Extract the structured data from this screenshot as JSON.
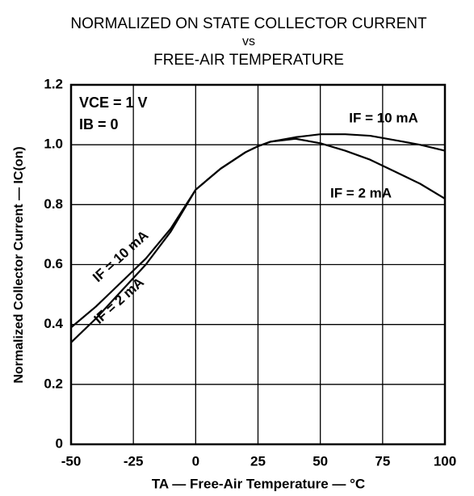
{
  "chart_data": {
    "type": "line",
    "title": [
      "NORMALIZED ON STATE COLLECTOR CURRENT",
      "vs",
      "FREE-AIR TEMPERATURE"
    ],
    "xlabel": "TA — Free-Air Temperature — °C",
    "ylabel": "Normalized Collector Current — IC(on)",
    "annotations": [
      "VCE = 1 V",
      "IB = 0"
    ],
    "x": [
      -50,
      -40,
      -30,
      -20,
      -10,
      0,
      10,
      20,
      25,
      30,
      40,
      50,
      60,
      70,
      80,
      90,
      100
    ],
    "series": [
      {
        "name": "IF = 10 mA",
        "color": "#000000",
        "values": [
          0.39,
          0.46,
          0.54,
          0.62,
          0.72,
          0.85,
          0.92,
          0.975,
          0.995,
          1.01,
          1.025,
          1.035,
          1.035,
          1.03,
          1.015,
          1.0,
          0.98
        ]
      },
      {
        "name": "IF = 2 mA",
        "color": "#000000",
        "values": [
          0.34,
          0.42,
          0.51,
          0.6,
          0.71,
          0.85,
          0.92,
          0.975,
          0.995,
          1.01,
          1.02,
          1.005,
          0.98,
          0.95,
          0.91,
          0.87,
          0.82
        ]
      }
    ],
    "xlim": [
      -50,
      100
    ],
    "xticks": [
      -50,
      -25,
      0,
      25,
      50,
      75,
      100
    ],
    "ylim": [
      0,
      1.2
    ],
    "yticks": [
      0,
      0.2,
      0.4,
      0.6,
      0.8,
      {
        "value": 1,
        "label": "1.0"
      },
      1.2
    ],
    "grid": true
  }
}
